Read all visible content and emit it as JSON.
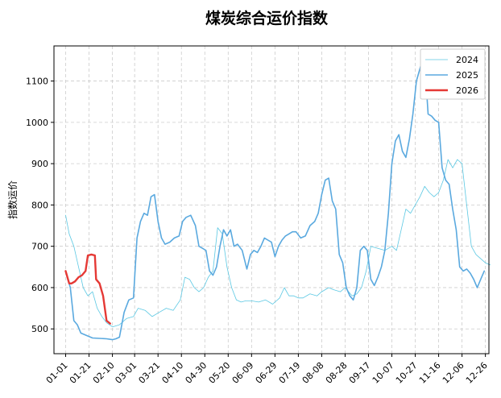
{
  "chart_data": {
    "type": "line",
    "title": "煤炭综合运价指数",
    "xlabel": "",
    "ylabel": "指数运价",
    "ylim": [
      440,
      1185
    ],
    "xlim_day": [
      -10,
      362
    ],
    "yticks": [
      500,
      600,
      700,
      800,
      900,
      1000,
      1100
    ],
    "xticks": [
      "01-01",
      "01-21",
      "02-10",
      "03-01",
      "03-21",
      "04-10",
      "04-30",
      "05-20",
      "06-09",
      "06-29",
      "07-19",
      "08-08",
      "08-28",
      "09-17",
      "10-07",
      "10-27",
      "11-16",
      "12-06",
      "12-26"
    ],
    "grid": true,
    "legend_position": "top-right",
    "series": [
      {
        "name": "2024",
        "color": "#5bc8e3",
        "x": [
          "01-01",
          "01-04",
          "01-08",
          "01-12",
          "01-16",
          "01-20",
          "01-24",
          "01-28",
          "02-01",
          "02-05",
          "02-10",
          "02-16",
          "02-22",
          "02-28",
          "03-04",
          "03-10",
          "03-16",
          "03-22",
          "03-28",
          "04-03",
          "04-09",
          "04-13",
          "04-17",
          "04-21",
          "04-25",
          "04-29",
          "05-03",
          "05-07",
          "05-11",
          "05-15",
          "05-19",
          "05-23",
          "05-27",
          "05-31",
          "06-04",
          "06-09",
          "06-15",
          "06-21",
          "06-27",
          "07-03",
          "07-07",
          "07-11",
          "07-15",
          "07-19",
          "07-23",
          "07-29",
          "08-04",
          "08-08",
          "08-14",
          "08-18",
          "08-24",
          "08-28",
          "09-03",
          "09-07",
          "09-11",
          "09-15",
          "09-19",
          "09-25",
          "10-01",
          "10-07",
          "10-11",
          "10-15",
          "10-19",
          "10-23",
          "10-27",
          "10-31",
          "11-04",
          "11-08",
          "11-12",
          "11-16",
          "11-20",
          "11-24",
          "11-28",
          "12-02",
          "12-06",
          "12-10",
          "12-14",
          "12-18",
          "12-22",
          "12-26",
          "12-30"
        ],
        "y": [
          775,
          730,
          700,
          650,
          600,
          580,
          590,
          550,
          530,
          515,
          505,
          510,
          525,
          530,
          550,
          545,
          530,
          540,
          550,
          545,
          570,
          625,
          620,
          600,
          590,
          600,
          625,
          640,
          745,
          730,
          650,
          600,
          570,
          565,
          568,
          568,
          565,
          570,
          560,
          575,
          600,
          580,
          580,
          575,
          575,
          585,
          580,
          590,
          600,
          595,
          590,
          600,
          580,
          585,
          600,
          640,
          700,
          695,
          690,
          700,
          690,
          740,
          790,
          780,
          800,
          820,
          845,
          830,
          820,
          830,
          860,
          910,
          890,
          910,
          900,
          800,
          700,
          680,
          670,
          660,
          655
        ]
      },
      {
        "name": "2025",
        "color": "#5aa9df",
        "x": [
          "01-01",
          "01-05",
          "01-08",
          "01-11",
          "01-14",
          "01-18",
          "01-24",
          "01-30",
          "02-05",
          "02-10",
          "02-13",
          "02-16",
          "02-20",
          "02-24",
          "02-28",
          "03-03",
          "03-06",
          "03-09",
          "03-12",
          "03-15",
          "03-18",
          "03-21",
          "03-24",
          "03-27",
          "03-31",
          "04-04",
          "04-08",
          "04-11",
          "04-14",
          "04-18",
          "04-22",
          "04-25",
          "04-28",
          "05-01",
          "05-04",
          "05-07",
          "05-10",
          "05-13",
          "05-16",
          "05-19",
          "05-22",
          "05-25",
          "05-28",
          "06-01",
          "06-05",
          "06-08",
          "06-11",
          "06-14",
          "06-17",
          "06-20",
          "06-23",
          "06-26",
          "06-29",
          "07-02",
          "07-05",
          "07-08",
          "07-11",
          "07-14",
          "07-17",
          "07-21",
          "07-25",
          "07-29",
          "08-02",
          "08-05",
          "08-08",
          "08-11",
          "08-14",
          "08-17",
          "08-20",
          "08-23",
          "08-26",
          "08-29",
          "09-01",
          "09-04",
          "09-07",
          "09-10",
          "09-13",
          "09-16",
          "09-19",
          "09-22",
          "09-25",
          "09-28",
          "10-01",
          "10-04",
          "10-07",
          "10-10",
          "10-13",
          "10-16",
          "10-19",
          "10-22",
          "10-25",
          "10-28",
          "11-01",
          "11-04",
          "11-07",
          "11-10",
          "11-13",
          "11-16",
          "11-19",
          "11-22",
          "11-25",
          "11-28",
          "12-01",
          "12-04",
          "12-07",
          "12-10",
          "12-13",
          "12-16",
          "12-19",
          "12-22",
          "12-25"
        ],
        "y": [
          640,
          600,
          520,
          510,
          490,
          485,
          478,
          477,
          476,
          474,
          476,
          480,
          540,
          570,
          575,
          720,
          760,
          780,
          775,
          820,
          825,
          760,
          720,
          705,
          710,
          720,
          725,
          760,
          770,
          775,
          750,
          700,
          695,
          690,
          640,
          630,
          650,
          700,
          740,
          725,
          740,
          700,
          705,
          690,
          645,
          680,
          690,
          685,
          700,
          720,
          715,
          710,
          675,
          700,
          715,
          725,
          730,
          735,
          735,
          720,
          725,
          750,
          760,
          780,
          825,
          860,
          865,
          810,
          790,
          680,
          660,
          600,
          580,
          570,
          600,
          690,
          700,
          690,
          620,
          605,
          625,
          650,
          690,
          780,
          900,
          955,
          970,
          930,
          915,
          960,
          1020,
          1100,
          1140,
          1150,
          1020,
          1015,
          1005,
          1000,
          890,
          860,
          850,
          790,
          740,
          650,
          640,
          645,
          635,
          620,
          600,
          620,
          640
        ]
      },
      {
        "name": "2026",
        "color": "#e53935",
        "x": [
          "01-01",
          "01-04",
          "01-06",
          "01-09",
          "01-12",
          "01-15",
          "01-18",
          "01-20",
          "01-23",
          "01-26",
          "01-27",
          "01-30",
          "02-02",
          "02-05",
          "02-08"
        ],
        "y": [
          640,
          610,
          610,
          615,
          625,
          630,
          640,
          678,
          680,
          678,
          620,
          610,
          580,
          520,
          513
        ]
      }
    ]
  }
}
